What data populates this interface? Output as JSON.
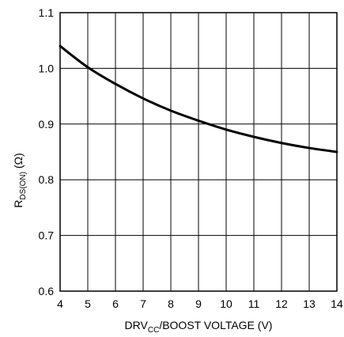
{
  "chart_data": {
    "type": "line",
    "xlabel": {
      "main": "DRV",
      "sub": "CC",
      "rest": "/BOOST VOLTAGE (V)"
    },
    "ylabel": {
      "main": "R",
      "sub": "DS(ON)",
      "rest": " (Ω)"
    },
    "xlim": [
      4,
      14
    ],
    "ylim": [
      0.6,
      1.1
    ],
    "x_ticks": [
      "4",
      "5",
      "6",
      "7",
      "8",
      "9",
      "10",
      "11",
      "12",
      "13",
      "14"
    ],
    "y_ticks": [
      "0.6",
      "0.7",
      "0.8",
      "0.9",
      "1.0",
      "1.1"
    ],
    "grid": true,
    "series": [
      {
        "x": [
          4,
          5,
          6,
          7,
          8,
          9,
          10,
          11,
          12,
          13,
          14
        ],
        "values": [
          1.04,
          1.002,
          0.972,
          0.946,
          0.924,
          0.906,
          0.89,
          0.877,
          0.866,
          0.857,
          0.85
        ]
      }
    ]
  }
}
